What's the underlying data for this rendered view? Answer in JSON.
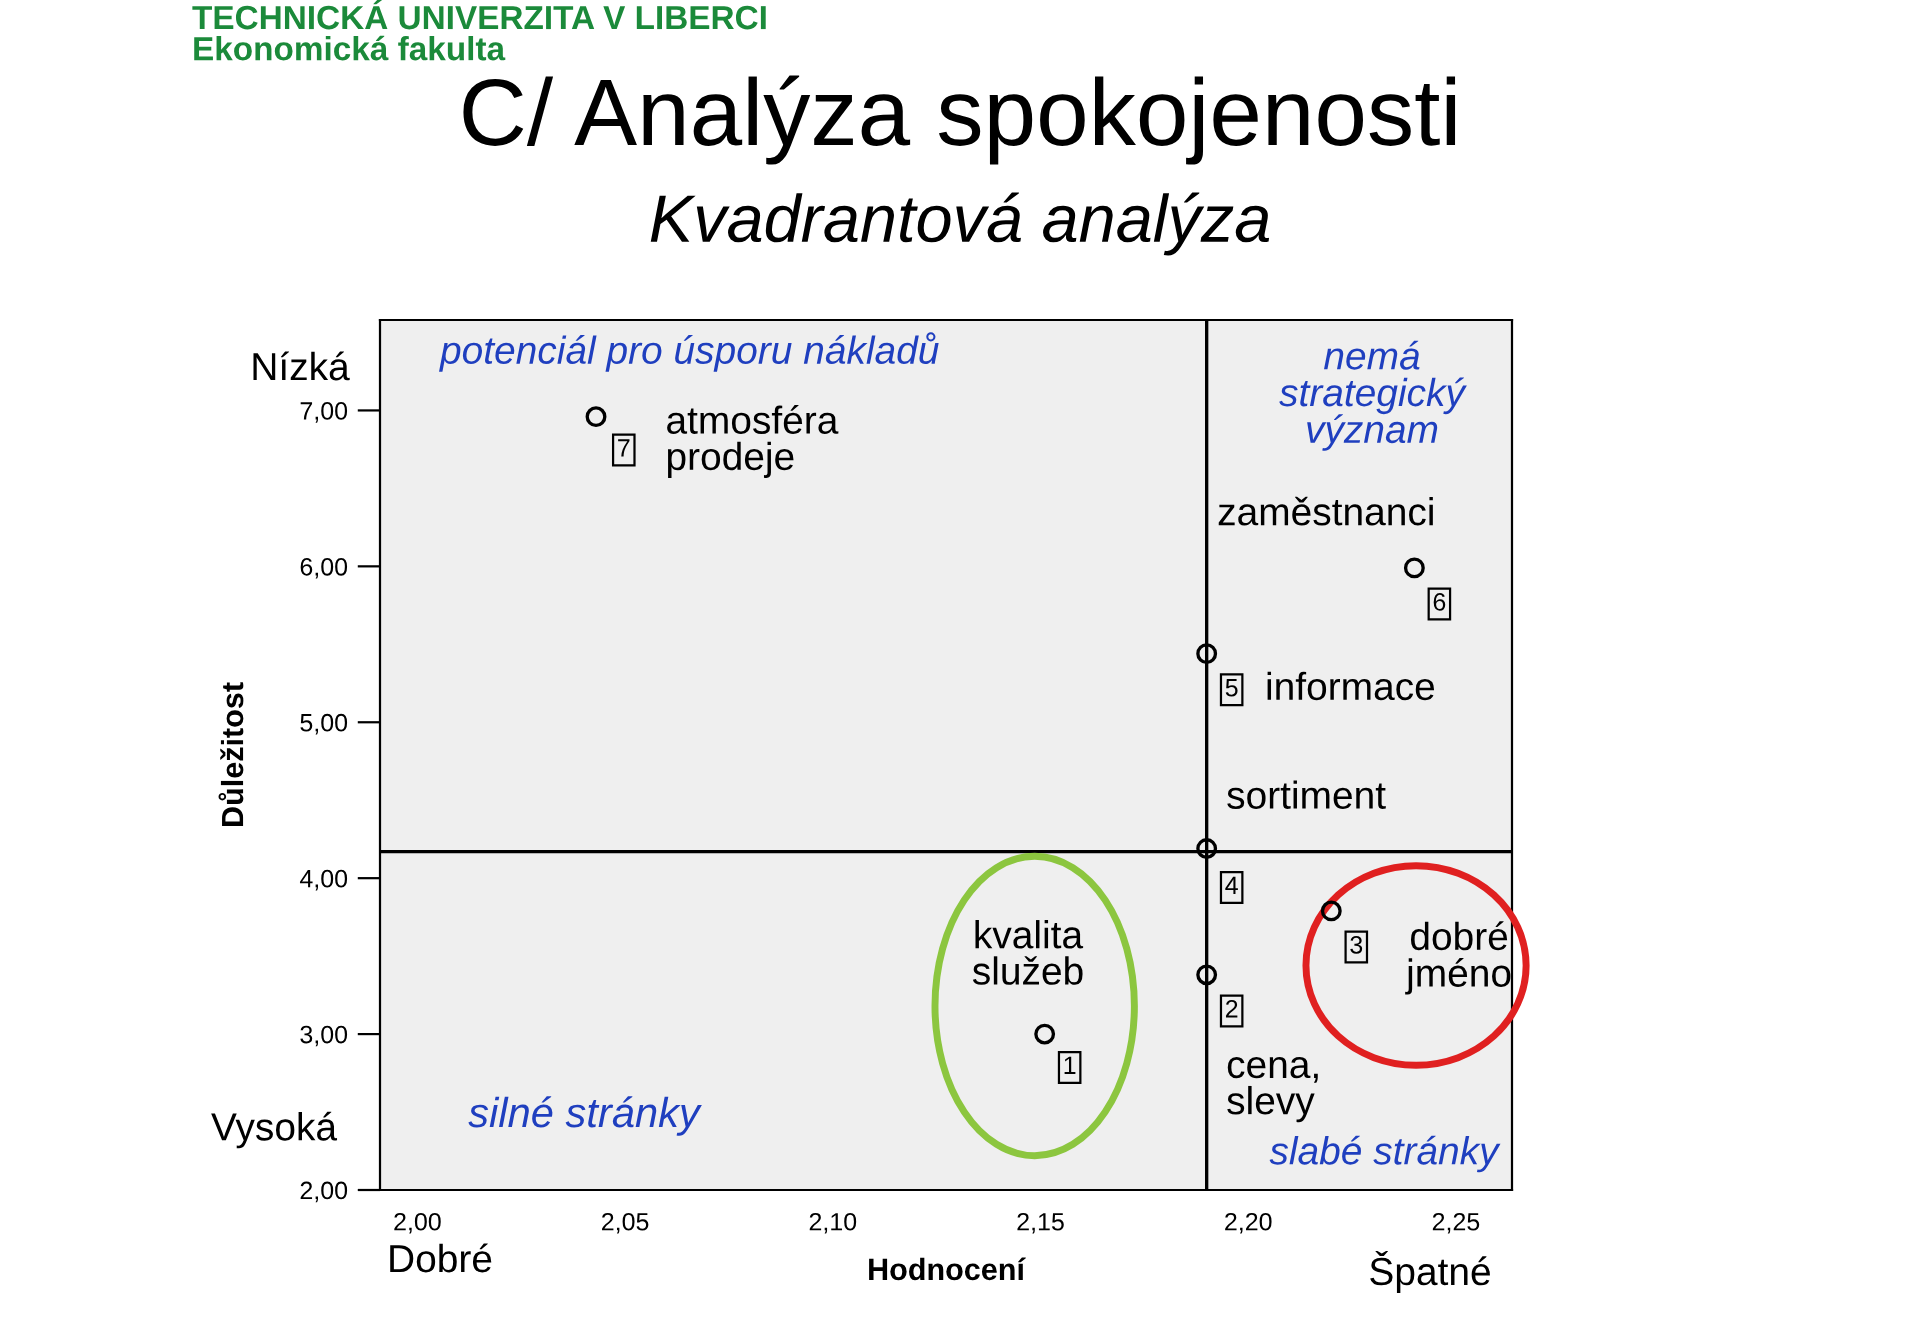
{
  "chart_data": {
    "type": "scatter",
    "title": "C/ Analýza spokojenosti",
    "subtitle": "Kvadrantová analýza",
    "xlabel": "Hodnocení",
    "ylabel": "Důležitost",
    "series": [
      {
        "color": "#000000",
        "x": [
          2.151,
          2.19,
          2.22,
          2.19,
          2.19,
          2.24,
          2.043
        ],
        "values": [
          3.0,
          3.38,
          3.79,
          4.19,
          5.44,
          5.99,
          6.96
        ]
      }
    ],
    "marker": "circle",
    "grid": false,
    "legend": false,
    "xlim": [
      1.991,
      2.2635
    ],
    "ylim": [
      2.0,
      7.58
    ],
    "xticks": [
      {
        "value": 2.0,
        "label": "2,00"
      },
      {
        "value": 2.05,
        "label": "2,05"
      },
      {
        "value": 2.1,
        "label": "2,10"
      },
      {
        "value": 2.15,
        "label": "2,15"
      },
      {
        "value": 2.2,
        "label": "2,20"
      },
      {
        "value": 2.25,
        "label": "2,25"
      }
    ],
    "yticks": [
      {
        "value": 2,
        "label": "2,00"
      },
      {
        "value": 3,
        "label": "3,00"
      },
      {
        "value": 4,
        "label": "4,00"
      },
      {
        "value": 5,
        "label": "5,00"
      },
      {
        "value": 6,
        "label": "6,00"
      },
      {
        "value": 7,
        "label": "7,00"
      }
    ],
    "ref_lines": [
      {
        "axis": "x",
        "value": 2.19,
        "label": null,
        "color": "#000000"
      },
      {
        "axis": "y",
        "value": 4.17,
        "label": null,
        "color": "#000000"
      }
    ],
    "annotations": [
      {
        "text": "1",
        "x": 2.151,
        "y": 3.0
      },
      {
        "text": "kvalita\nslužeb",
        "x": 2.151,
        "y": 3.0
      },
      {
        "text": "2",
        "x": 2.19,
        "y": 3.38
      },
      {
        "text": "cena,\nslevy",
        "x": 2.19,
        "y": 3.38
      },
      {
        "text": "3",
        "x": 2.22,
        "y": 3.79
      },
      {
        "text": "dobré\njméno",
        "x": 2.22,
        "y": 3.79
      },
      {
        "text": "4",
        "x": 2.19,
        "y": 4.19
      },
      {
        "text": "sortiment",
        "x": 2.19,
        "y": 4.19
      },
      {
        "text": "5",
        "x": 2.19,
        "y": 5.44
      },
      {
        "text": "informace",
        "x": 2.19,
        "y": 5.44
      },
      {
        "text": "6",
        "x": 2.24,
        "y": 5.99
      },
      {
        "text": "zaměstnanci",
        "x": 2.24,
        "y": 5.99
      },
      {
        "text": "7",
        "x": 2.043,
        "y": 6.96
      },
      {
        "text": "atmosféra\nprodeje",
        "x": 2.043,
        "y": 6.96
      },
      "potenciál pro úsporu nákladů",
      "nemá\nstrategický\nvýznam",
      "silné stránky",
      "slabé stránky",
      "Nízká",
      "Vysoká",
      "Dobré",
      "Špatné",
      "TECHNICKÁ UNIVERZITA V LIBERCI\nEkonomická fakulta"
    ]
  }
}
